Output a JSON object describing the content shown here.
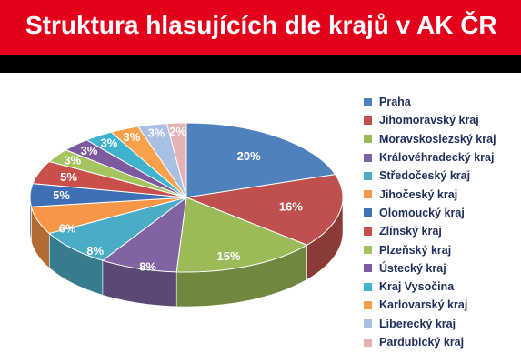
{
  "header": {
    "title": "Struktura hlasujících dle krajů v AK ČR"
  },
  "colors": {
    "title_bg": "#e3001b",
    "band": "#000000"
  },
  "chart_data": {
    "type": "pie",
    "title": "Struktura hlasujících dle krajů v AK ČR",
    "legend_position": "right",
    "slices": [
      {
        "label": "Praha",
        "value": 20,
        "text": "20%",
        "color": "#4f81bd"
      },
      {
        "label": "Jihomoravský kraj",
        "value": 16,
        "text": "16%",
        "color": "#c0504d"
      },
      {
        "label": "Moravskoslezský kraj",
        "value": 15,
        "text": "15%",
        "color": "#9bbb59"
      },
      {
        "label": "Královéhradecký kraj",
        "value": 8,
        "text": "8%",
        "color": "#8064a2"
      },
      {
        "label": "Středočeský kraj",
        "value": 8,
        "text": "8%",
        "color": "#4bacc6"
      },
      {
        "label": "Jihočeský kraj",
        "value": 6,
        "text": "6%",
        "color": "#f79646"
      },
      {
        "label": "Olomoucký kraj",
        "value": 5,
        "text": "5%",
        "color": "#3f6fb5"
      },
      {
        "label": "Zlínský kraj",
        "value": 5,
        "text": "5%",
        "color": "#c94f4b"
      },
      {
        "label": "Plzeňský kraj",
        "value": 3,
        "text": "3%",
        "color": "#a5c45f"
      },
      {
        "label": "Ústecký kraj",
        "value": 3,
        "text": "3%",
        "color": "#7b5aa0"
      },
      {
        "label": "Kraj Vysočina",
        "value": 3,
        "text": "3%",
        "color": "#3fb3cc"
      },
      {
        "label": "Karlovarský kraj",
        "value": 3,
        "text": "3%",
        "color": "#f7a24a"
      },
      {
        "label": "Liberecký kraj",
        "value": 3,
        "text": "3%",
        "color": "#a9bfe3"
      },
      {
        "label": "Pardubický kraj",
        "value": 2,
        "text": "2%",
        "color": "#e5b3b3"
      }
    ]
  }
}
